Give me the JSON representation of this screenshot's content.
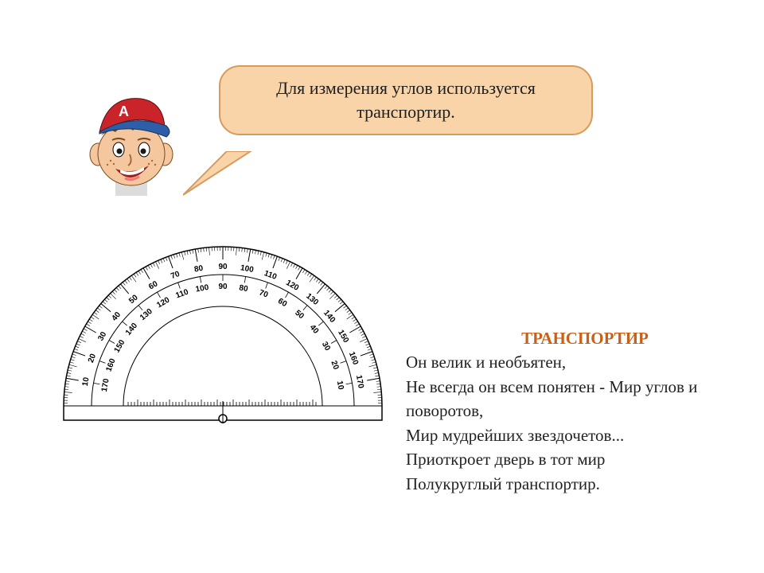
{
  "speech": {
    "text": "Для измерения углов используется транспортир.",
    "bg_color": "#f8d4a8",
    "border_color": "#d89a5e",
    "fontsize": 22
  },
  "character": {
    "cap_peak_color": "#2e5ea8",
    "cap_crown_color": "#c8242a",
    "cap_letter": "A",
    "skin_color": "#f5c79e",
    "hair_color": "#7a4a20",
    "mouth_color": "#9a2320"
  },
  "protractor": {
    "outer_scale": [
      "10",
      "20",
      "30",
      "40",
      "50",
      "60",
      "70",
      "80",
      "90",
      "100",
      "110",
      "120",
      "130",
      "140",
      "150",
      "160",
      "170"
    ],
    "inner_scale": [
      "170",
      "160",
      "150",
      "140",
      "130",
      "120",
      "110",
      "100",
      "90",
      "80",
      "70",
      "60",
      "50",
      "40",
      "30",
      "20",
      "10"
    ],
    "outer_radius": 200,
    "inner_ring_radius": 165,
    "tick_color": "#000000",
    "label_fontsize": 10,
    "stroke_color": "#000000",
    "background": "#ffffff"
  },
  "poem": {
    "title": "ТРАНСПОРТИР",
    "title_color": "#c86018",
    "lines": [
      "Он велик и необъятен,",
      "Не всегда он всем понятен - Мир углов и поворотов,",
      "Мир мудрейших звездочетов...",
      "Приоткроет дверь в тот мир",
      "Полукруглый транспортир."
    ],
    "fontsize": 21,
    "text_color": "#222222"
  }
}
